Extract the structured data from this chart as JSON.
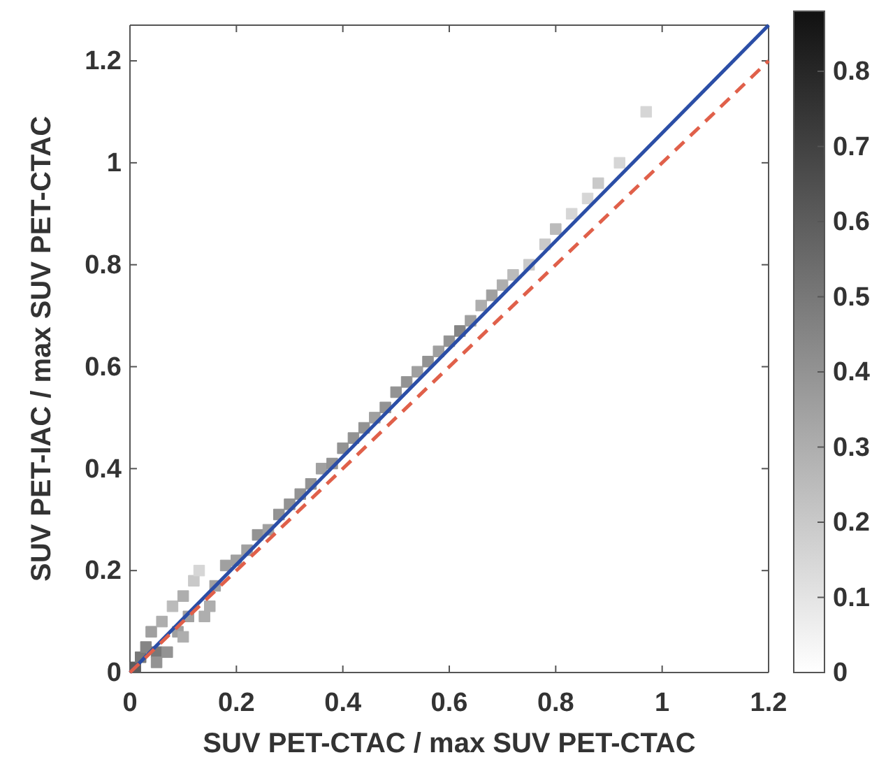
{
  "chart_data": {
    "type": "scatter",
    "xlabel": "SUV PET-CTAC / max SUV PET-CTAC",
    "ylabel": "SUV PET-IAC / max SUV PET-CTAC",
    "xlim": [
      0,
      1.2
    ],
    "ylim": [
      0,
      1.27
    ],
    "xticks": [
      0,
      0.2,
      0.4,
      0.6,
      0.8,
      1,
      1.2
    ],
    "yticks": [
      0,
      0.2,
      0.4,
      0.6,
      0.8,
      1,
      1.2
    ],
    "clim": [
      0,
      0.88
    ],
    "cticks": [
      0,
      0.1,
      0.2,
      0.3,
      0.4,
      0.5,
      0.6,
      0.7,
      0.8
    ],
    "grid": false,
    "series": [
      {
        "marker": "square",
        "x": [
          0.01,
          0.02,
          0.03,
          0.04,
          0.05,
          0.05,
          0.06,
          0.07,
          0.08,
          0.09,
          0.1,
          0.1,
          0.11,
          0.12,
          0.13,
          0.14,
          0.15,
          0.16,
          0.18,
          0.2,
          0.22,
          0.24,
          0.26,
          0.28,
          0.3,
          0.32,
          0.34,
          0.36,
          0.38,
          0.4,
          0.42,
          0.44,
          0.46,
          0.48,
          0.5,
          0.52,
          0.54,
          0.56,
          0.58,
          0.6,
          0.62,
          0.64,
          0.66,
          0.68,
          0.7,
          0.72,
          0.75,
          0.78,
          0.8,
          0.83,
          0.86,
          0.88,
          0.92,
          0.97
        ],
        "values": [
          0.01,
          0.03,
          0.05,
          0.08,
          0.04,
          0.02,
          0.1,
          0.04,
          0.13,
          0.08,
          0.15,
          0.07,
          0.11,
          0.18,
          0.2,
          0.11,
          0.13,
          0.17,
          0.21,
          0.22,
          0.24,
          0.27,
          0.28,
          0.31,
          0.33,
          0.35,
          0.37,
          0.4,
          0.41,
          0.44,
          0.46,
          0.48,
          0.5,
          0.52,
          0.55,
          0.57,
          0.59,
          0.61,
          0.63,
          0.65,
          0.67,
          0.69,
          0.72,
          0.74,
          0.76,
          0.78,
          0.8,
          0.84,
          0.87,
          0.9,
          0.93,
          0.96,
          1.0,
          1.1
        ],
        "cvalues": [
          0.6,
          0.5,
          0.45,
          0.35,
          0.5,
          0.4,
          0.3,
          0.4,
          0.25,
          0.35,
          0.3,
          0.3,
          0.35,
          0.2,
          0.15,
          0.3,
          0.3,
          0.35,
          0.35,
          0.35,
          0.35,
          0.4,
          0.35,
          0.4,
          0.4,
          0.4,
          0.4,
          0.35,
          0.4,
          0.4,
          0.4,
          0.4,
          0.35,
          0.4,
          0.4,
          0.4,
          0.35,
          0.4,
          0.35,
          0.4,
          0.45,
          0.35,
          0.3,
          0.35,
          0.3,
          0.25,
          0.2,
          0.2,
          0.25,
          0.15,
          0.15,
          0.2,
          0.15,
          0.15
        ],
        "colors": [
          "#5d5d5d",
          "#787878",
          "#858585",
          "#a0a0a0",
          "#787878",
          "#939393",
          "#aeaeae",
          "#939393",
          "#bbbbbb",
          "#a0a0a0",
          "#aeaeae",
          "#aeaeae",
          "#a0a0a0",
          "#c9c9c9",
          "#d6d6d6",
          "#aeaeae",
          "#aeaeae",
          "#a0a0a0",
          "#a0a0a0",
          "#a0a0a0",
          "#a0a0a0",
          "#939393",
          "#a0a0a0",
          "#939393",
          "#939393",
          "#939393",
          "#939393",
          "#a0a0a0",
          "#939393",
          "#939393",
          "#939393",
          "#939393",
          "#a0a0a0",
          "#939393",
          "#939393",
          "#939393",
          "#a0a0a0",
          "#939393",
          "#a0a0a0",
          "#939393",
          "#858585",
          "#a0a0a0",
          "#aeaeae",
          "#a0a0a0",
          "#aeaeae",
          "#bbbbbb",
          "#c9c9c9",
          "#c9c9c9",
          "#bbbbbb",
          "#d6d6d6",
          "#d6d6d6",
          "#c9c9c9",
          "#d6d6d6",
          "#d6d6d6"
        ]
      },
      {
        "type": "line",
        "marker": "none",
        "color": "#2b4ea6",
        "line_style": "solid",
        "x": [
          0,
          1.2
        ],
        "values": [
          0,
          1.27
        ]
      },
      {
        "type": "line",
        "marker": "none",
        "color": "#e0604a",
        "line_style": "dashed",
        "x": [
          0,
          1.2
        ],
        "values": [
          0,
          1.2
        ]
      }
    ]
  }
}
